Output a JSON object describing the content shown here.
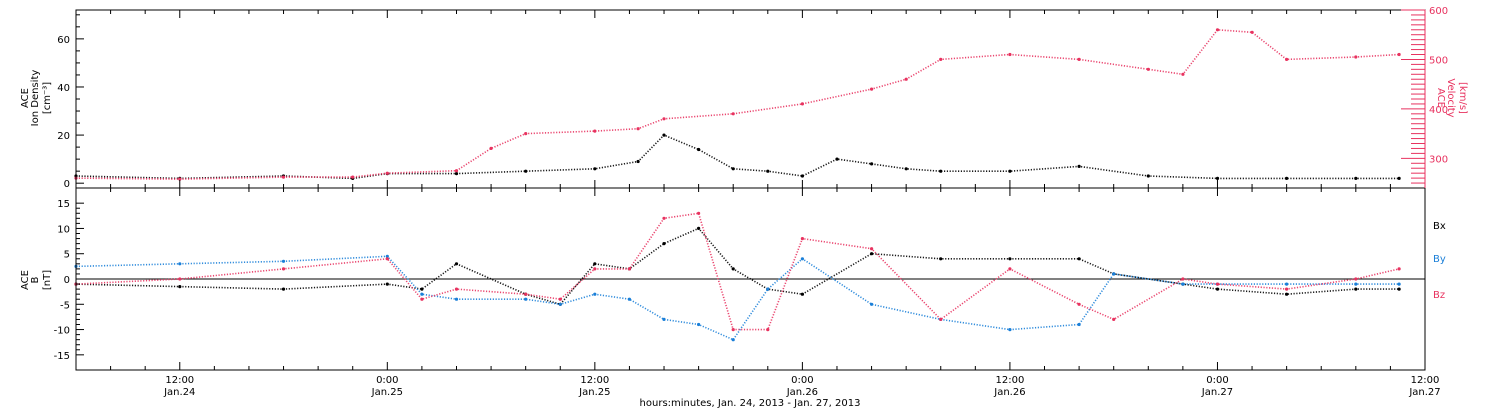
{
  "colors": {
    "density": "#000000",
    "velocity": "#e8325f",
    "bx": "#000000",
    "by": "#1a7fd8",
    "bz": "#e8325f"
  },
  "time_axis": {
    "xlabel": "hours:minutes, Jan. 24, 2013 - Jan. 27, 2013",
    "ticks": [
      {
        "time": "12:00",
        "date": "Jan.24"
      },
      {
        "time": "0:00",
        "date": "Jan.25"
      },
      {
        "time": "12:00",
        "date": "Jan.25"
      },
      {
        "time": "0:00",
        "date": "Jan.26"
      },
      {
        "time": "12:00",
        "date": "Jan.26"
      },
      {
        "time": "0:00",
        "date": "Jan.27"
      },
      {
        "time": "12:00",
        "date": "Jan.27"
      }
    ]
  },
  "chart_data": [
    {
      "type": "scatter",
      "panel": "top",
      "ylabel_left": [
        "ACE",
        "Ion Density",
        "[cm⁻³]"
      ],
      "ylabel_right": [
        "ACE",
        "Velocity",
        "[km/s]"
      ],
      "x_range": [
        "2013-01-24T06:00",
        "2013-01-27T12:00"
      ],
      "ylim_left": [
        -2,
        72
      ],
      "yticks_left": [
        "0",
        "20",
        "40",
        "60"
      ],
      "ylim_right": [
        240,
        600
      ],
      "yticks_right": [
        "300",
        "400",
        "500",
        "600"
      ],
      "series": [
        {
          "name": "Ion Density",
          "axis": "left",
          "x": [
            "2013-01-24T06:00",
            "2013-01-24T12:00",
            "2013-01-24T18:00",
            "2013-01-24T22:00",
            "2013-01-25T00:00",
            "2013-01-25T04:00",
            "2013-01-25T08:00",
            "2013-01-25T12:00",
            "2013-01-25T14:30",
            "2013-01-25T16:00",
            "2013-01-25T18:00",
            "2013-01-25T20:00",
            "2013-01-25T22:00",
            "2013-01-26T00:00",
            "2013-01-26T02:00",
            "2013-01-26T04:00",
            "2013-01-26T06:00",
            "2013-01-26T08:00",
            "2013-01-26T12:00",
            "2013-01-26T16:00",
            "2013-01-26T20:00",
            "2013-01-27T00:00",
            "2013-01-27T04:00",
            "2013-01-27T08:00",
            "2013-01-27T10:30"
          ],
          "values": [
            3,
            2,
            3,
            2,
            4,
            4,
            5,
            6,
            9,
            20,
            14,
            6,
            5,
            3,
            10,
            8,
            6,
            5,
            5,
            7,
            3,
            2,
            2,
            2,
            2
          ]
        },
        {
          "name": "Velocity",
          "axis": "right",
          "x": [
            "2013-01-24T06:00",
            "2013-01-24T12:00",
            "2013-01-24T18:00",
            "2013-01-24T22:00",
            "2013-01-25T00:00",
            "2013-01-25T04:00",
            "2013-01-25T06:00",
            "2013-01-25T08:00",
            "2013-01-25T12:00",
            "2013-01-25T14:30",
            "2013-01-25T16:00",
            "2013-01-25T20:00",
            "2013-01-26T00:00",
            "2013-01-26T04:00",
            "2013-01-26T06:00",
            "2013-01-26T08:00",
            "2013-01-26T12:00",
            "2013-01-26T16:00",
            "2013-01-26T20:00",
            "2013-01-26T22:00",
            "2013-01-27T00:00",
            "2013-01-27T02:00",
            "2013-01-27T04:00",
            "2013-01-27T08:00",
            "2013-01-27T10:30"
          ],
          "values": [
            260,
            258,
            262,
            262,
            270,
            275,
            320,
            350,
            355,
            360,
            380,
            390,
            410,
            440,
            460,
            500,
            510,
            500,
            480,
            470,
            560,
            555,
            500,
            505,
            510
          ]
        }
      ]
    },
    {
      "type": "scatter",
      "panel": "bottom",
      "ylabel_left": [
        "ACE",
        "B",
        "[nT]"
      ],
      "x_range": [
        "2013-01-24T06:00",
        "2013-01-27T12:00"
      ],
      "ylim": [
        -18,
        18
      ],
      "yticks": [
        "15",
        "10",
        "5",
        "0",
        "-5",
        "-10",
        "-15"
      ],
      "zero_line": true,
      "legend": [
        "Bx",
        "By",
        "Bz"
      ],
      "legend_position": "right",
      "series": [
        {
          "name": "Bx",
          "x": [
            "2013-01-24T06:00",
            "2013-01-24T12:00",
            "2013-01-24T18:00",
            "2013-01-25T00:00",
            "2013-01-25T02:00",
            "2013-01-25T04:00",
            "2013-01-25T08:00",
            "2013-01-25T10:00",
            "2013-01-25T12:00",
            "2013-01-25T14:00",
            "2013-01-25T16:00",
            "2013-01-25T18:00",
            "2013-01-25T20:00",
            "2013-01-25T22:00",
            "2013-01-26T00:00",
            "2013-01-26T04:00",
            "2013-01-26T08:00",
            "2013-01-26T12:00",
            "2013-01-26T16:00",
            "2013-01-26T18:00",
            "2013-01-26T22:00",
            "2013-01-27T00:00",
            "2013-01-27T04:00",
            "2013-01-27T08:00",
            "2013-01-27T10:30"
          ],
          "values": [
            -1,
            -1.5,
            -2,
            -1,
            -2,
            3,
            -3,
            -5,
            3,
            2,
            7,
            10,
            2,
            -2,
            -3,
            5,
            4,
            4,
            4,
            1,
            -1,
            -2,
            -3,
            -2,
            -2
          ]
        },
        {
          "name": "By",
          "x": [
            "2013-01-24T06:00",
            "2013-01-24T12:00",
            "2013-01-24T18:00",
            "2013-01-25T00:00",
            "2013-01-25T02:00",
            "2013-01-25T04:00",
            "2013-01-25T08:00",
            "2013-01-25T10:00",
            "2013-01-25T12:00",
            "2013-01-25T14:00",
            "2013-01-25T16:00",
            "2013-01-25T18:00",
            "2013-01-25T20:00",
            "2013-01-25T22:00",
            "2013-01-26T00:00",
            "2013-01-26T04:00",
            "2013-01-26T08:00",
            "2013-01-26T12:00",
            "2013-01-26T16:00",
            "2013-01-26T18:00",
            "2013-01-26T22:00",
            "2013-01-27T00:00",
            "2013-01-27T04:00",
            "2013-01-27T08:00",
            "2013-01-27T10:30"
          ],
          "values": [
            2.5,
            3,
            3.5,
            4.5,
            -3,
            -4,
            -4,
            -5,
            -3,
            -4,
            -8,
            -9,
            -12,
            -2,
            4,
            -5,
            -8,
            -10,
            -9,
            1,
            -1,
            -1,
            -1,
            -1,
            -1
          ]
        },
        {
          "name": "Bz",
          "x": [
            "2013-01-24T06:00",
            "2013-01-24T12:00",
            "2013-01-24T18:00",
            "2013-01-25T00:00",
            "2013-01-25T02:00",
            "2013-01-25T04:00",
            "2013-01-25T08:00",
            "2013-01-25T10:00",
            "2013-01-25T12:00",
            "2013-01-25T14:00",
            "2013-01-25T16:00",
            "2013-01-25T18:00",
            "2013-01-25T20:00",
            "2013-01-25T22:00",
            "2013-01-26T00:00",
            "2013-01-26T04:00",
            "2013-01-26T08:00",
            "2013-01-26T12:00",
            "2013-01-26T16:00",
            "2013-01-26T18:00",
            "2013-01-26T22:00",
            "2013-01-27T00:00",
            "2013-01-27T04:00",
            "2013-01-27T08:00",
            "2013-01-27T10:30"
          ],
          "values": [
            -1,
            0,
            2,
            4,
            -4,
            -2,
            -3,
            -4,
            2,
            2,
            12,
            13,
            -10,
            -10,
            8,
            6,
            -8,
            2,
            -5,
            -8,
            0,
            -1,
            -2,
            0,
            2
          ]
        }
      ]
    }
  ]
}
